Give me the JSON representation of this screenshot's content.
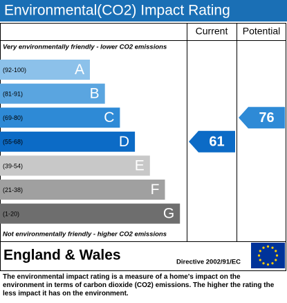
{
  "title": "Environmental(CO2) Impact Rating",
  "columns": {
    "current": "Current",
    "potential": "Potential"
  },
  "top_note": "Very environmentally friendly - lower CO2 emissions",
  "bottom_note": "Not environmentally friendly - higher CO2 emissions",
  "bands": [
    {
      "range": "(92-100)",
      "letter": "A",
      "color": "#8cc1ea"
    },
    {
      "range": "(81-91)",
      "letter": "B",
      "color": "#5aa5e0"
    },
    {
      "range": "(69-80)",
      "letter": "C",
      "color": "#2e8ad6"
    },
    {
      "range": "(55-68)",
      "letter": "D",
      "color": "#0c6bc6"
    },
    {
      "range": "(39-54)",
      "letter": "E",
      "color": "#c8c8c8"
    },
    {
      "range": "(21-38)",
      "letter": "F",
      "color": "#a0a0a0"
    },
    {
      "range": "(1-20)",
      "letter": "G",
      "color": "#6e6e6e"
    }
  ],
  "current": {
    "value": 61,
    "color": "#0c6bc6"
  },
  "potential": {
    "value": 76,
    "color": "#2e8ad6"
  },
  "region": "England & Wales",
  "directive": "Directive 2002/91/EC",
  "description": "The environmental impact rating is a measure of a home's impact on the environment in terms of carbon dioxide (CO2) emissions. The higher the rating the less impact it has on the environment."
}
